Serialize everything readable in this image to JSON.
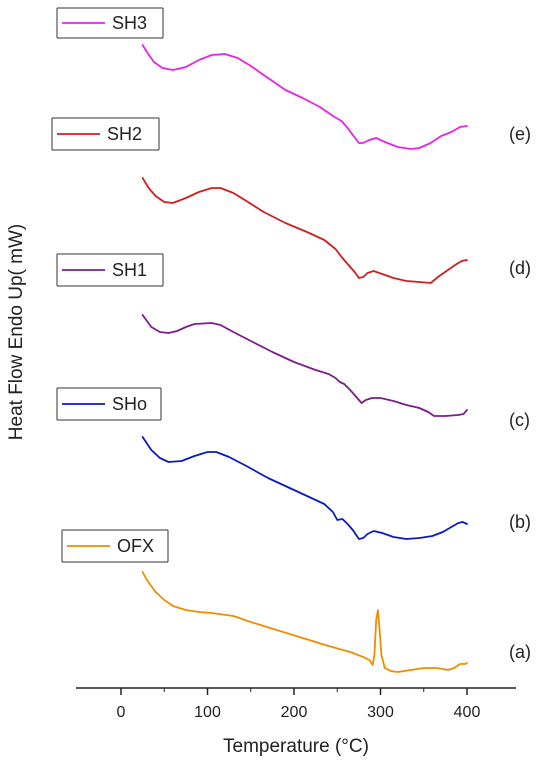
{
  "chart_data": {
    "type": "line",
    "title": "",
    "xlabel": "Temperature (°C)",
    "ylabel": "Heat Flow Endo Up( mW)",
    "xlim": [
      -55,
      450
    ],
    "x_ticks": [
      0,
      100,
      200,
      300,
      400
    ],
    "y_ticks": [],
    "grid": false,
    "legend": "per-curve boxes at upper left of each curve",
    "series": [
      {
        "name": "OFX",
        "letter": "(a)",
        "color": "#f08c00",
        "points": [
          [
            25,
            572
          ],
          [
            30,
            580
          ],
          [
            40,
            592
          ],
          [
            50,
            600
          ],
          [
            60,
            606
          ],
          [
            75,
            610
          ],
          [
            90,
            612
          ],
          [
            105,
            613
          ],
          [
            130,
            616
          ],
          [
            150,
            622
          ],
          [
            180,
            630
          ],
          [
            210,
            638
          ],
          [
            240,
            646
          ],
          [
            265,
            652
          ],
          [
            280,
            657
          ],
          [
            287,
            660
          ],
          [
            291,
            665
          ],
          [
            293,
            655
          ],
          [
            295,
            620
          ],
          [
            297,
            610
          ],
          [
            299,
            630
          ],
          [
            301,
            655
          ],
          [
            305,
            668
          ],
          [
            312,
            671
          ],
          [
            320,
            672
          ],
          [
            335,
            670
          ],
          [
            350,
            668
          ],
          [
            365,
            668
          ],
          [
            378,
            670
          ],
          [
            385,
            668
          ],
          [
            392,
            664
          ],
          [
            398,
            664
          ],
          [
            400,
            663
          ]
        ]
      },
      {
        "name": "SHo",
        "letter": "(b)",
        "color": "#0a1ac4",
        "points": [
          [
            25,
            437
          ],
          [
            35,
            450
          ],
          [
            45,
            458
          ],
          [
            55,
            462
          ],
          [
            70,
            461
          ],
          [
            85,
            456
          ],
          [
            100,
            452
          ],
          [
            110,
            452
          ],
          [
            125,
            457
          ],
          [
            145,
            466
          ],
          [
            170,
            478
          ],
          [
            195,
            488
          ],
          [
            220,
            498
          ],
          [
            235,
            504
          ],
          [
            245,
            512
          ],
          [
            250,
            520
          ],
          [
            256,
            519
          ],
          [
            262,
            524
          ],
          [
            268,
            530
          ],
          [
            275,
            539
          ],
          [
            280,
            538
          ],
          [
            285,
            534
          ],
          [
            292,
            531
          ],
          [
            302,
            533
          ],
          [
            315,
            537
          ],
          [
            330,
            539
          ],
          [
            345,
            538
          ],
          [
            360,
            536
          ],
          [
            372,
            532
          ],
          [
            382,
            527
          ],
          [
            390,
            523
          ],
          [
            395,
            522
          ],
          [
            400,
            524
          ]
        ]
      },
      {
        "name": "SH1",
        "letter": "(c)",
        "color": "#7a1e8a",
        "points": [
          [
            25,
            315
          ],
          [
            35,
            327
          ],
          [
            45,
            332
          ],
          [
            55,
            333
          ],
          [
            65,
            331
          ],
          [
            75,
            327
          ],
          [
            85,
            324
          ],
          [
            105,
            323
          ],
          [
            115,
            325
          ],
          [
            130,
            332
          ],
          [
            150,
            341
          ],
          [
            175,
            352
          ],
          [
            200,
            362
          ],
          [
            225,
            370
          ],
          [
            240,
            374
          ],
          [
            248,
            378
          ],
          [
            253,
            382
          ],
          [
            258,
            384
          ],
          [
            265,
            390
          ],
          [
            272,
            397
          ],
          [
            278,
            403
          ],
          [
            283,
            400
          ],
          [
            290,
            398
          ],
          [
            300,
            398
          ],
          [
            315,
            401
          ],
          [
            330,
            405
          ],
          [
            345,
            408
          ],
          [
            355,
            412
          ],
          [
            362,
            416
          ],
          [
            375,
            416
          ],
          [
            390,
            415
          ],
          [
            396,
            414
          ],
          [
            400,
            410
          ]
        ]
      },
      {
        "name": "SH2",
        "letter": "(d)",
        "color": "#d01e1e",
        "points": [
          [
            25,
            178
          ],
          [
            32,
            188
          ],
          [
            40,
            196
          ],
          [
            50,
            202
          ],
          [
            60,
            203
          ],
          [
            75,
            198
          ],
          [
            90,
            192
          ],
          [
            105,
            188
          ],
          [
            115,
            188
          ],
          [
            130,
            193
          ],
          [
            145,
            201
          ],
          [
            165,
            212
          ],
          [
            190,
            223
          ],
          [
            215,
            232
          ],
          [
            235,
            240
          ],
          [
            248,
            249
          ],
          [
            255,
            257
          ],
          [
            262,
            264
          ],
          [
            270,
            272
          ],
          [
            275,
            278
          ],
          [
            280,
            277
          ],
          [
            285,
            273
          ],
          [
            292,
            271
          ],
          [
            302,
            274
          ],
          [
            315,
            278
          ],
          [
            330,
            281
          ],
          [
            345,
            282
          ],
          [
            358,
            283
          ],
          [
            368,
            276
          ],
          [
            378,
            270
          ],
          [
            388,
            264
          ],
          [
            394,
            261
          ],
          [
            400,
            260
          ]
        ]
      },
      {
        "name": "SH3",
        "letter": "(e)",
        "color": "#e623e6",
        "points": [
          [
            25,
            45
          ],
          [
            30,
            52
          ],
          [
            38,
            62
          ],
          [
            48,
            68
          ],
          [
            60,
            70
          ],
          [
            75,
            67
          ],
          [
            90,
            60
          ],
          [
            105,
            55
          ],
          [
            120,
            54
          ],
          [
            135,
            58
          ],
          [
            150,
            66
          ],
          [
            170,
            78
          ],
          [
            190,
            90
          ],
          [
            210,
            98
          ],
          [
            230,
            107
          ],
          [
            245,
            116
          ],
          [
            255,
            121
          ],
          [
            262,
            128
          ],
          [
            268,
            135
          ],
          [
            275,
            143
          ],
          [
            280,
            143
          ],
          [
            287,
            140
          ],
          [
            295,
            138
          ],
          [
            305,
            142
          ],
          [
            320,
            147
          ],
          [
            335,
            149
          ],
          [
            345,
            148
          ],
          [
            358,
            143
          ],
          [
            370,
            136
          ],
          [
            382,
            132
          ],
          [
            392,
            127
          ],
          [
            400,
            126
          ]
        ]
      }
    ]
  }
}
